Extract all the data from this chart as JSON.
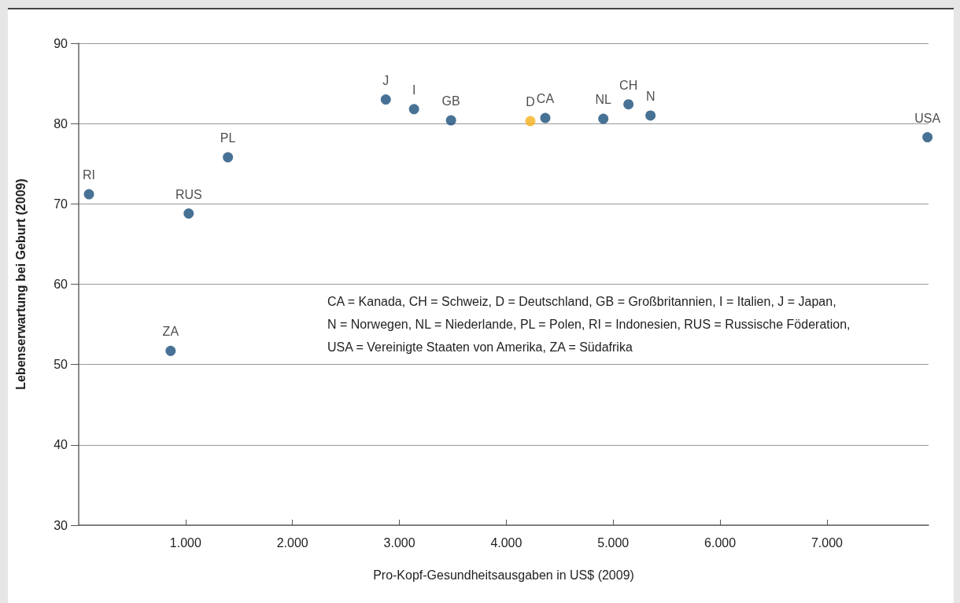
{
  "chart_data": {
    "type": "scatter",
    "xlabel": "Pro-Kopf-Gesundheitsausgaben in US$ (2009)",
    "ylabel": "Lebenserwartung bei Geburt (2009)",
    "series": [
      {
        "name": "RI",
        "color": "#1a4f7a",
        "x": [
          96
        ],
        "values": [
          71.2
        ]
      },
      {
        "name": "RUS",
        "color": "#1a4f7a",
        "x": [
          1029
        ],
        "values": [
          68.8
        ]
      },
      {
        "name": "ZA",
        "color": "#1a4f7a",
        "x": [
          860
        ],
        "values": [
          51.7
        ]
      },
      {
        "name": "PL",
        "color": "#1a4f7a",
        "x": [
          1396
        ],
        "values": [
          75.8
        ]
      },
      {
        "name": "J",
        "color": "#1a4f7a",
        "x": [
          2873
        ],
        "values": [
          83.0
        ]
      },
      {
        "name": "I",
        "color": "#1a4f7a",
        "x": [
          3137
        ],
        "values": [
          81.8
        ]
      },
      {
        "name": "GB",
        "color": "#1a4f7a",
        "x": [
          3483
        ],
        "values": [
          80.4
        ]
      },
      {
        "name": "D",
        "color": "#f5b21b",
        "x": [
          4225
        ],
        "values": [
          80.3
        ]
      },
      {
        "name": "CA",
        "color": "#1a4f7a",
        "x": [
          4365
        ],
        "values": [
          80.7
        ]
      },
      {
        "name": "NL",
        "color": "#1a4f7a",
        "x": [
          4908
        ],
        "values": [
          80.6
        ]
      },
      {
        "name": "CH",
        "color": "#1a4f7a",
        "x": [
          5143
        ],
        "values": [
          82.4
        ]
      },
      {
        "name": "N",
        "color": "#1a4f7a",
        "x": [
          5349
        ],
        "values": [
          81.0
        ]
      },
      {
        "name": "USA",
        "color": "#1a4f7a",
        "x": [
          7940
        ],
        "values": [
          78.3
        ]
      }
    ],
    "xlim": [
      0,
      7950
    ],
    "xticks": [
      {
        "value": 1000,
        "label": "1.000"
      },
      {
        "value": 2000,
        "label": "2.000"
      },
      {
        "value": 3000,
        "label": "3.000"
      },
      {
        "value": 4000,
        "label": "4.000"
      },
      {
        "value": 5000,
        "label": "5.000"
      },
      {
        "value": 6000,
        "label": "6.000"
      },
      {
        "value": 7000,
        "label": "7.000"
      }
    ],
    "ylim": [
      30,
      90
    ],
    "yticks": [
      30,
      40,
      50,
      60,
      70,
      80,
      90
    ],
    "grid": "y",
    "marker": "circle",
    "legend": false,
    "annotations": [
      "CA = Kanada, CH = Schweiz, D = Deutschland, GB = Großbritannien, I = Italien, J = Japan,",
      "N = Norwegen, NL = Niederlande, PL = Polen, RI = Indonesien, RUS = Russische Föderation,",
      "USA = Vereinigte Staaten von Amerika, ZA = Südafrika"
    ]
  }
}
